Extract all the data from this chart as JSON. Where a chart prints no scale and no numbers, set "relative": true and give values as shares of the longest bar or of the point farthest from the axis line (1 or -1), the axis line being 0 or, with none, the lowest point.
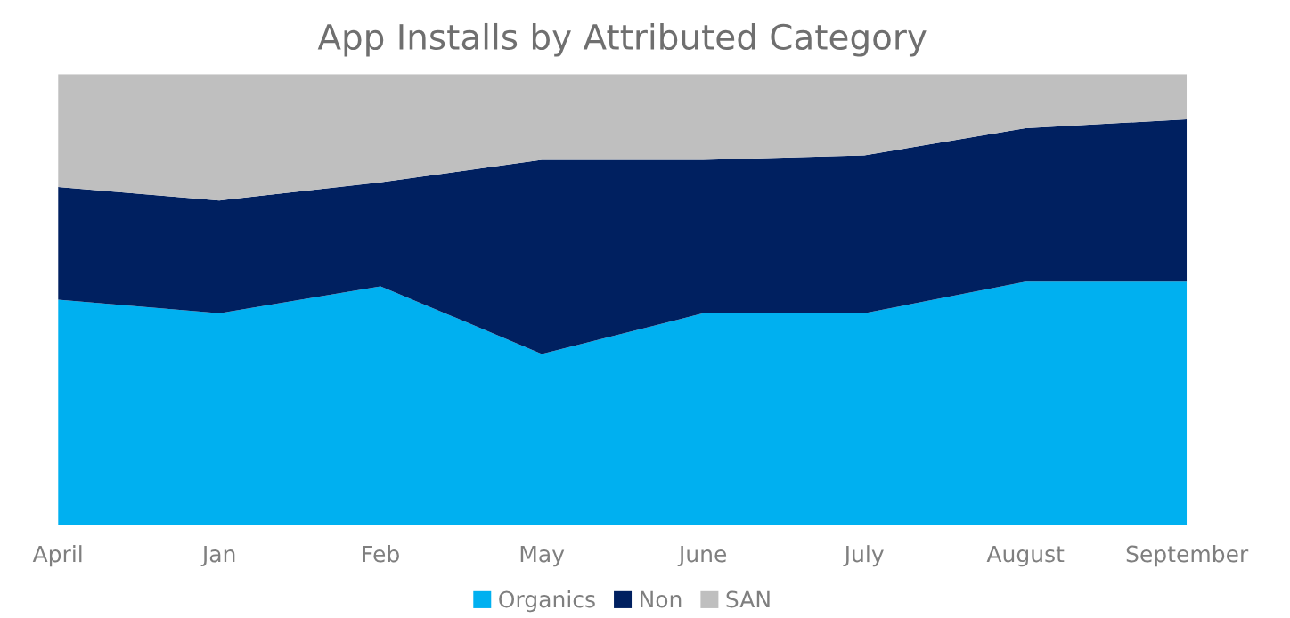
{
  "chart_data": {
    "type": "area",
    "title": "App Installs by Attributed Category",
    "relative": true,
    "stacked": true,
    "categories": [
      "April",
      "Jan",
      "Feb",
      "May",
      "June",
      "July",
      "August",
      "September"
    ],
    "series": [
      {
        "name": "Organics",
        "color": "#00b0f0",
        "values": [
          0.5,
          0.47,
          0.53,
          0.38,
          0.47,
          0.47,
          0.54,
          0.54
        ]
      },
      {
        "name": "Non",
        "color": "#002060",
        "values": [
          0.25,
          0.25,
          0.23,
          0.43,
          0.34,
          0.35,
          0.34,
          0.36
        ]
      },
      {
        "name": "SAN",
        "color": "#bfbfbf",
        "values": [
          0.25,
          0.28,
          0.24,
          0.19,
          0.19,
          0.18,
          0.12,
          0.1
        ]
      }
    ],
    "legend": "bottom",
    "grid": false
  }
}
